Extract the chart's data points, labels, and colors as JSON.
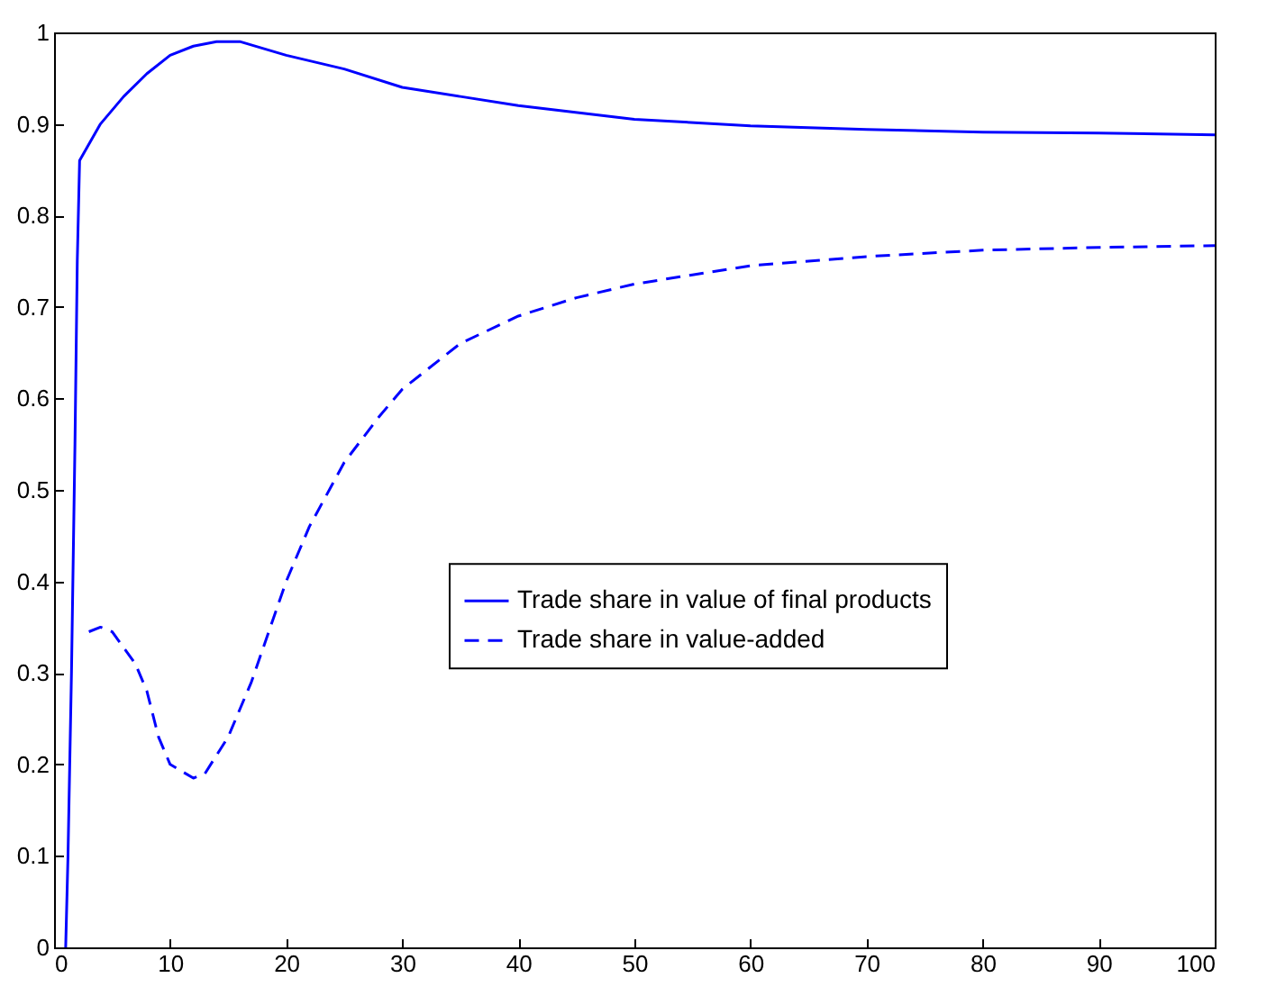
{
  "chart_data": {
    "type": "line",
    "xlim": [
      0,
      100
    ],
    "ylim": [
      0,
      1
    ],
    "xticks": [
      0,
      10,
      20,
      30,
      40,
      50,
      60,
      70,
      80,
      90,
      100
    ],
    "yticks": [
      0,
      0.1,
      0.2,
      0.3,
      0.4,
      0.5,
      0.6,
      0.7,
      0.8,
      0.9,
      1
    ],
    "legend": "right",
    "grid": false,
    "series": [
      {
        "name": "Trade share in value of final products",
        "color": "#0000ff",
        "line_style": "solid",
        "x": [
          1,
          1.2,
          1.5,
          1.8,
          2,
          2.2,
          4,
          6,
          8,
          10,
          12,
          14,
          16,
          20,
          25,
          30,
          35,
          40,
          50,
          60,
          70,
          80,
          90,
          100
        ],
        "values": [
          0,
          0.1,
          0.3,
          0.55,
          0.75,
          0.86,
          0.9,
          0.93,
          0.955,
          0.975,
          0.985,
          0.99,
          0.99,
          0.975,
          0.96,
          0.94,
          0.93,
          0.92,
          0.905,
          0.898,
          0.894,
          0.891,
          0.89,
          0.888
        ]
      },
      {
        "name": "Trade share in value-added",
        "color": "#0000ff",
        "line_style": "dashed",
        "x": [
          3,
          4,
          5,
          7,
          8,
          9,
          10,
          12,
          13,
          15,
          17,
          20,
          22,
          25,
          28,
          30,
          35,
          40,
          45,
          50,
          55,
          60,
          70,
          80,
          90,
          100
        ],
        "values": [
          0.345,
          0.35,
          0.345,
          0.31,
          0.28,
          0.23,
          0.2,
          0.185,
          0.19,
          0.23,
          0.29,
          0.4,
          0.46,
          0.53,
          0.58,
          0.61,
          0.66,
          0.69,
          0.71,
          0.725,
          0.735,
          0.745,
          0.755,
          0.762,
          0.765,
          0.767
        ]
      }
    ]
  }
}
